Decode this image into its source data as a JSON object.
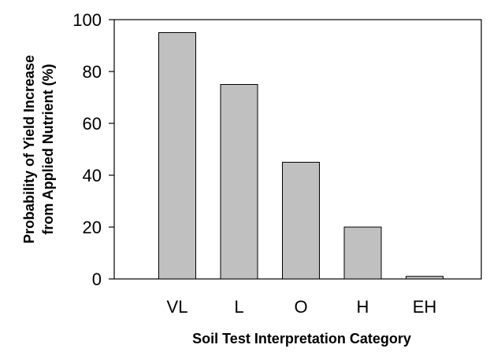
{
  "chart_data": {
    "type": "bar",
    "title": "",
    "xlabel": "Soil Test Interpretation Category",
    "ylabel_lines": [
      "Probability of Yield Increase",
      "from Applied Nutrient (%)"
    ],
    "categories": [
      "VL",
      "L",
      "O",
      "H",
      "EH"
    ],
    "values": [
      95,
      75,
      45,
      20,
      1
    ],
    "ylim": [
      0,
      100
    ],
    "yticks": [
      "0",
      "20",
      "40",
      "60",
      "80",
      "100"
    ],
    "grid": false,
    "legend": "none",
    "colors": {
      "bar_fill": "#c0c0c0",
      "bar_stroke": "#000000",
      "axis": "#000000"
    }
  }
}
